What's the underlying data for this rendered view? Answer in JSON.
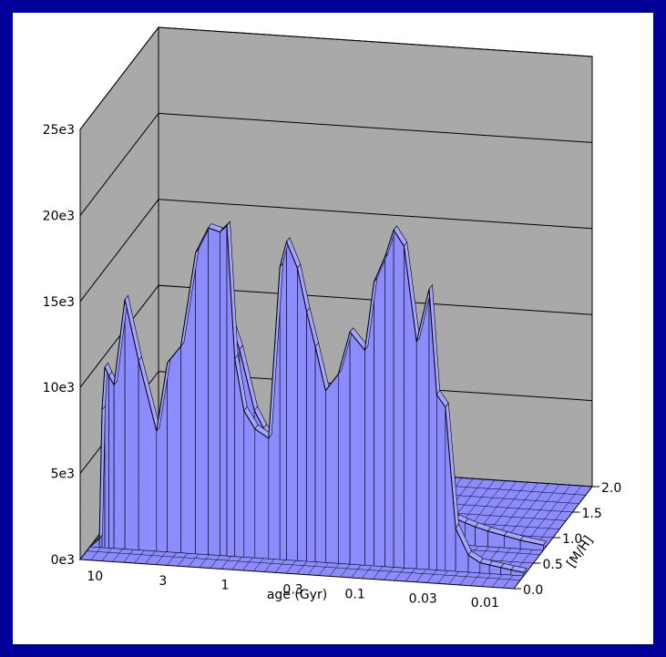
{
  "colors": {
    "background": "#000099",
    "panel": "#ffffff",
    "wall": "#a9a9a9",
    "surface": "#8c8cff",
    "floor": "#8c8cff",
    "line": "#000000"
  },
  "chart_data": {
    "type": "area",
    "title": "",
    "xlabel": "age (Gyr)",
    "ylabel": "[M/H]",
    "zlabel": "",
    "x_scale": "log",
    "x_reversed": true,
    "xlim": [
      13,
      0.006
    ],
    "ylim": [
      0.0,
      2.0
    ],
    "zlim": [
      0,
      25000
    ],
    "z_ticks": [
      {
        "value": 0,
        "label": "0e3"
      },
      {
        "value": 5000,
        "label": "5e3"
      },
      {
        "value": 10000,
        "label": "10e3"
      },
      {
        "value": 15000,
        "label": "15e3"
      },
      {
        "value": 20000,
        "label": "20e3"
      },
      {
        "value": 25000,
        "label": "25e3"
      }
    ],
    "x_ticks": [
      {
        "value": 10,
        "label": "10"
      },
      {
        "value": 3,
        "label": "3"
      },
      {
        "value": 1,
        "label": "1"
      },
      {
        "value": 0.3,
        "label": "0.3"
      },
      {
        "value": 0.1,
        "label": "0.1"
      },
      {
        "value": 0.03,
        "label": "0.03"
      },
      {
        "value": 0.01,
        "label": "0.01"
      }
    ],
    "y_ticks": [
      {
        "value": 0.0,
        "label": "0.0"
      },
      {
        "value": 0.5,
        "label": "0.5"
      },
      {
        "value": 1.0,
        "label": "1.0"
      },
      {
        "value": 1.5,
        "label": "1.5"
      },
      {
        "value": 2.0,
        "label": "2.0"
      }
    ],
    "grid": true,
    "series": [
      {
        "mh": 0.25,
        "x": [
          13,
          11,
          10.5,
          10,
          9.3,
          8.5,
          7,
          5.5,
          4,
          3.3,
          2.6,
          2,
          1.6,
          1.3,
          1.15,
          1,
          0.85,
          0.7,
          0.55,
          0.45,
          0.4,
          0.33,
          0.28,
          0.24,
          0.2,
          0.16,
          0.13,
          0.1,
          0.085,
          0.07,
          0.06,
          0.05,
          0.04,
          0.032,
          0.028,
          0.024,
          0.02,
          0.016,
          0.013,
          0.011,
          0.009,
          0.0075,
          0.006
        ],
        "values": [
          0,
          500,
          8000,
          10500,
          10000,
          9500,
          14500,
          11000,
          7000,
          11000,
          12000,
          17500,
          19000,
          18800,
          19200,
          11500,
          8500,
          7500,
          7000,
          17000,
          18500,
          17000,
          14500,
          12500,
          10000,
          11000,
          13500,
          12500,
          16500,
          18000,
          19600,
          18700,
          13200,
          16300,
          10200,
          9500,
          2500,
          1000,
          600,
          500,
          400,
          300,
          200
        ]
      },
      {
        "mh": 0.75,
        "x": [
          13,
          10,
          8.5,
          7,
          5.5,
          4,
          3,
          2.4,
          2,
          1.6,
          1.3,
          1,
          0.85,
          0.7,
          0.55,
          0.45,
          0.4,
          0.33,
          0.28,
          0.24,
          0.2,
          0.16,
          0.13,
          0.1,
          0.085,
          0.07,
          0.06,
          0.05,
          0.04,
          0.032,
          0.028,
          0.024,
          0.02,
          0.016,
          0.012,
          0.009,
          0.006
        ],
        "values": [
          0,
          300,
          500,
          4500,
          6000,
          5000,
          7000,
          8000,
          11000,
          12500,
          10500,
          7000,
          6000,
          5000,
          8000,
          9500,
          9000,
          8000,
          7000,
          6000,
          5000,
          4000,
          3000,
          2500,
          2200,
          2000,
          2000,
          2000,
          1800,
          1700,
          1500,
          1300,
          1100,
          900,
          700,
          500,
          300
        ]
      }
    ]
  }
}
